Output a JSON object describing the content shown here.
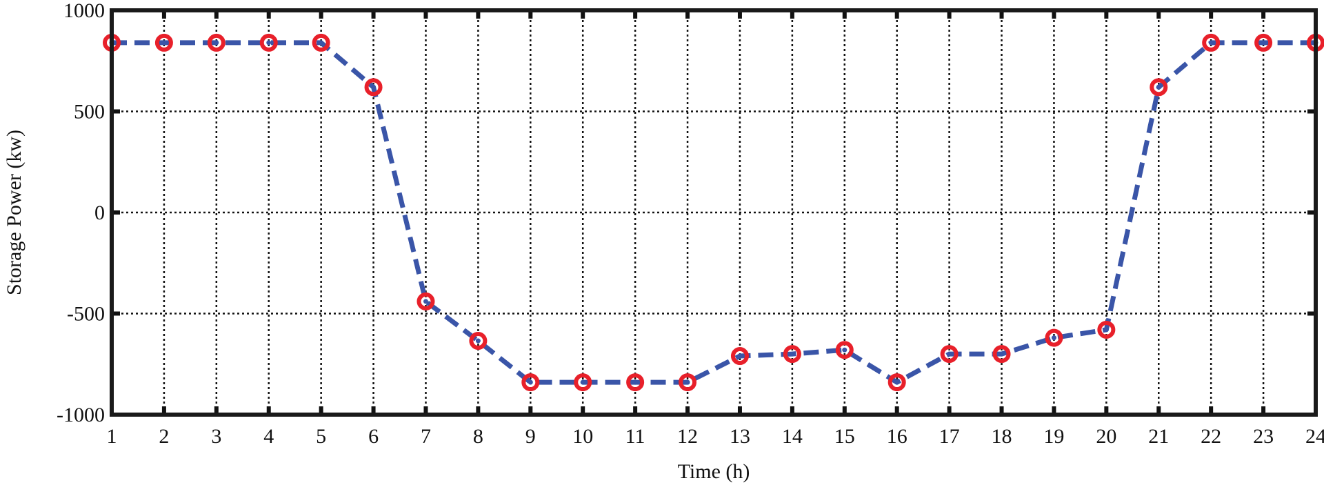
{
  "chart_data": {
    "type": "line",
    "title": "",
    "xlabel": "Time (h)",
    "ylabel": "Storage Power (kw)",
    "xlim": [
      1,
      24
    ],
    "ylim": [
      -1000,
      1000
    ],
    "grid": true,
    "grid_style": "dotted",
    "xticks": [
      "1",
      "2",
      "3",
      "4",
      "5",
      "6",
      "7",
      "8",
      "9",
      "10",
      "11",
      "12",
      "13",
      "14",
      "15",
      "16",
      "17",
      "18",
      "19",
      "20",
      "21",
      "22",
      "23",
      "24"
    ],
    "yticks": [
      {
        "value": 1000,
        "label": "1000"
      },
      {
        "value": 500,
        "label": "500"
      },
      {
        "value": 0,
        "label": "0"
      },
      {
        "value": -500,
        "label": "-500"
      },
      {
        "value": -1000,
        "label": "-1000"
      }
    ],
    "x": [
      1,
      2,
      3,
      4,
      5,
      6,
      7,
      8,
      9,
      10,
      11,
      12,
      13,
      14,
      15,
      16,
      17,
      18,
      19,
      20,
      21,
      22,
      23,
      24
    ],
    "series": [
      {
        "values": [
          840,
          840,
          840,
          840,
          840,
          620,
          -440,
          -635,
          -840,
          -840,
          -840,
          -840,
          -710,
          -700,
          -680,
          -840,
          -700,
          -700,
          -620,
          -580,
          620,
          840,
          840,
          840
        ],
        "line_color": "#3a55a8",
        "line_style": "dashed",
        "marker_color": "#e8202a",
        "marker": "circle"
      }
    ]
  }
}
